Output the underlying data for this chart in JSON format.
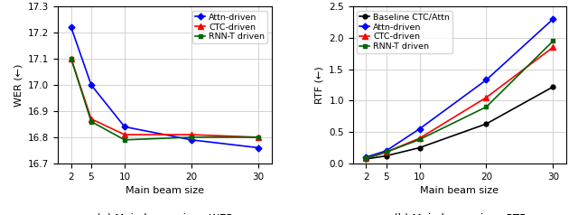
{
  "x_wer": [
    2,
    5,
    10,
    20,
    30
  ],
  "wer_attn": [
    17.22,
    17.0,
    16.84,
    16.79,
    16.76
  ],
  "wer_ctc": [
    17.1,
    16.87,
    16.81,
    16.81,
    16.8
  ],
  "wer_rnnt": [
    17.1,
    16.86,
    16.79,
    16.8,
    16.8
  ],
  "x_rtf": [
    2,
    5,
    10,
    20,
    30
  ],
  "rtf_baseline": [
    0.07,
    0.12,
    0.25,
    0.63,
    1.22
  ],
  "rtf_attn": [
    0.1,
    0.2,
    0.55,
    1.33,
    2.3
  ],
  "rtf_ctc": [
    0.08,
    0.18,
    0.4,
    1.05,
    1.85
  ],
  "rtf_rnnt": [
    0.08,
    0.18,
    0.38,
    0.9,
    1.95
  ],
  "wer_ylim": [
    16.7,
    17.3
  ],
  "wer_yticks": [
    16.7,
    16.8,
    16.9,
    17.0,
    17.1,
    17.2,
    17.3
  ],
  "rtf_ylim": [
    0.0,
    2.5
  ],
  "rtf_yticks": [
    0.0,
    0.5,
    1.0,
    1.5,
    2.0,
    2.5
  ],
  "x_ticks": [
    2,
    5,
    10,
    20,
    30
  ],
  "x_ticklabels": [
    "2",
    "5",
    "10",
    "20",
    "30"
  ],
  "color_attn": "#0000ff",
  "color_ctc": "#ff0000",
  "color_rnnt": "#006400",
  "color_baseline": "#000000",
  "xlabel": "Main beam size",
  "ylabel_wer": "WER (←)",
  "ylabel_rtf": "RTF (←)",
  "caption_wer": "(a) Main beam size - WER",
  "caption_rtf": "(b) Main beam size - RTF",
  "legend_wer": [
    "Attn-driven",
    "CTC-driven",
    "RNN-T driven"
  ],
  "legend_rtf": [
    "Baseline CTC/Attn",
    "Attn-driven",
    "CTC-driven",
    "RNN-T driven"
  ],
  "grid_color": "#cccccc",
  "bg_color": "#ffffff",
  "figsize": [
    6.4,
    2.38
  ],
  "dpi": 100
}
